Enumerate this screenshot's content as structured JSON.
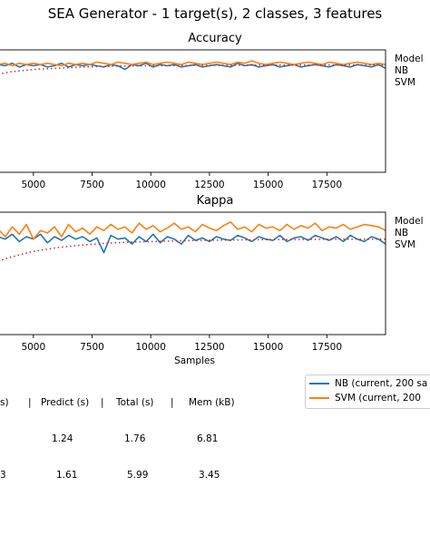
{
  "title": "SEA Generator - 1 target(s), 2 classes, 3 features",
  "colors": {
    "nb": "#1f77b4",
    "svm": "#ff7f0e",
    "dotted": "#d62728"
  },
  "legend_side": {
    "header": "Model",
    "items": [
      "NB",
      "SVM"
    ]
  },
  "legend_bottom": {
    "items": [
      {
        "label": "NB  (current, 200 sa",
        "color": "#1f77b4"
      },
      {
        "label": "SVM  (current, 200",
        "color": "#ff7f0e"
      }
    ]
  },
  "stats": {
    "header": [
      "s)",
      "|",
      "Predict (s)",
      "|",
      "Total (s)",
      "|",
      "Mem (kB)"
    ],
    "rows": [
      [
        "",
        "1.24",
        "1.76",
        "6.81"
      ],
      [
        "3",
        "1.61",
        "5.99",
        "3.45"
      ]
    ]
  },
  "chart_data": [
    {
      "type": "line",
      "title": "Accuracy",
      "xlabel": "",
      "ylabel": "",
      "xticks": [
        5000,
        7500,
        10000,
        12500,
        15000,
        17500
      ],
      "xlim": [
        3500,
        20000
      ],
      "ylim": [
        0,
        1
      ],
      "grid": false,
      "legend_placement": "right",
      "series": [
        {
          "name": "NB",
          "style": "solid",
          "x": [
            3500,
            3800,
            4100,
            4400,
            4700,
            5000,
            5300,
            5600,
            5900,
            6200,
            6500,
            6800,
            7100,
            7400,
            7700,
            8000,
            8300,
            8600,
            8900,
            9200,
            9500,
            9800,
            10100,
            10400,
            10700,
            11000,
            11300,
            11600,
            11900,
            12200,
            12500,
            12800,
            13100,
            13400,
            13700,
            14000,
            14300,
            14600,
            14900,
            15200,
            15500,
            15800,
            16100,
            16400,
            16700,
            17000,
            17300,
            17600,
            17900,
            18200,
            18500,
            18800,
            19100,
            19400,
            19700,
            20000
          ],
          "y": [
            0.88,
            0.87,
            0.89,
            0.86,
            0.88,
            0.87,
            0.88,
            0.86,
            0.87,
            0.89,
            0.86,
            0.88,
            0.87,
            0.88,
            0.87,
            0.86,
            0.88,
            0.87,
            0.84,
            0.88,
            0.87,
            0.89,
            0.86,
            0.88,
            0.87,
            0.88,
            0.86,
            0.87,
            0.88,
            0.86,
            0.87,
            0.88,
            0.87,
            0.86,
            0.89,
            0.87,
            0.88,
            0.86,
            0.87,
            0.88,
            0.86,
            0.87,
            0.88,
            0.86,
            0.87,
            0.88,
            0.87,
            0.86,
            0.88,
            0.87,
            0.86,
            0.88,
            0.87,
            0.86,
            0.88,
            0.85
          ]
        },
        {
          "name": "SVM",
          "style": "solid",
          "x": [
            3500,
            3800,
            4100,
            4400,
            4700,
            5000,
            5300,
            5600,
            5900,
            6200,
            6500,
            6800,
            7100,
            7400,
            7700,
            8000,
            8300,
            8600,
            8900,
            9200,
            9500,
            9800,
            10100,
            10400,
            10700,
            11000,
            11300,
            11600,
            11900,
            12200,
            12500,
            12800,
            13100,
            13400,
            13700,
            14000,
            14300,
            14600,
            14900,
            15200,
            15500,
            15800,
            16100,
            16400,
            16700,
            17000,
            17300,
            17600,
            17900,
            18200,
            18500,
            18800,
            19100,
            19400,
            19700,
            20000
          ],
          "y": [
            0.88,
            0.89,
            0.87,
            0.89,
            0.88,
            0.89,
            0.88,
            0.89,
            0.88,
            0.87,
            0.89,
            0.88,
            0.89,
            0.88,
            0.9,
            0.89,
            0.88,
            0.9,
            0.89,
            0.88,
            0.89,
            0.9,
            0.88,
            0.89,
            0.9,
            0.89,
            0.88,
            0.9,
            0.89,
            0.88,
            0.89,
            0.9,
            0.89,
            0.88,
            0.9,
            0.89,
            0.91,
            0.89,
            0.88,
            0.89,
            0.9,
            0.89,
            0.88,
            0.89,
            0.9,
            0.89,
            0.88,
            0.9,
            0.89,
            0.88,
            0.89,
            0.9,
            0.89,
            0.88,
            0.89,
            0.88
          ]
        },
        {
          "name": "",
          "style": "dotted",
          "x": [
            3500,
            4000,
            5000,
            6000,
            7000,
            8000,
            9000,
            10000,
            11000,
            12000,
            13000,
            14000,
            15000,
            16000,
            17000,
            18000,
            19000,
            20000
          ],
          "y": [
            0.8,
            0.82,
            0.84,
            0.85,
            0.86,
            0.865,
            0.868,
            0.87,
            0.872,
            0.873,
            0.874,
            0.875,
            0.876,
            0.876,
            0.877,
            0.877,
            0.877,
            0.877
          ]
        }
      ]
    },
    {
      "type": "line",
      "title": "Kappa",
      "xlabel": "Samples",
      "ylabel": "",
      "xticks": [
        5000,
        7500,
        10000,
        12500,
        15000,
        17500
      ],
      "xlim": [
        3500,
        20000
      ],
      "ylim": [
        0,
        1
      ],
      "grid": false,
      "legend_placement": "right",
      "series": [
        {
          "name": "NB",
          "style": "solid",
          "x": [
            3500,
            3800,
            4100,
            4400,
            4700,
            5000,
            5300,
            5600,
            5900,
            6200,
            6500,
            6800,
            7100,
            7400,
            7700,
            8000,
            8300,
            8600,
            8900,
            9200,
            9500,
            9800,
            10100,
            10400,
            10700,
            11000,
            11300,
            11600,
            11900,
            12200,
            12500,
            12800,
            13100,
            13400,
            13700,
            14000,
            14300,
            14600,
            14900,
            15200,
            15500,
            15800,
            16100,
            16400,
            16700,
            17000,
            17300,
            17600,
            17900,
            18200,
            18500,
            18800,
            19100,
            19400,
            19700,
            20000
          ],
          "y": [
            0.8,
            0.78,
            0.82,
            0.76,
            0.8,
            0.78,
            0.82,
            0.75,
            0.8,
            0.77,
            0.81,
            0.78,
            0.8,
            0.76,
            0.79,
            0.67,
            0.81,
            0.78,
            0.79,
            0.74,
            0.8,
            0.76,
            0.82,
            0.75,
            0.8,
            0.78,
            0.74,
            0.81,
            0.77,
            0.79,
            0.76,
            0.8,
            0.78,
            0.77,
            0.81,
            0.79,
            0.76,
            0.8,
            0.78,
            0.77,
            0.81,
            0.76,
            0.79,
            0.8,
            0.77,
            0.81,
            0.79,
            0.77,
            0.8,
            0.76,
            0.81,
            0.78,
            0.76,
            0.8,
            0.78,
            0.74
          ]
        },
        {
          "name": "SVM",
          "style": "solid",
          "x": [
            3500,
            3800,
            4100,
            4400,
            4700,
            5000,
            5300,
            5600,
            5900,
            6200,
            6500,
            6800,
            7100,
            7400,
            7700,
            8000,
            8300,
            8600,
            8900,
            9200,
            9500,
            9800,
            10100,
            10400,
            10700,
            11000,
            11300,
            11600,
            11900,
            12200,
            12500,
            12800,
            13100,
            13400,
            13700,
            14000,
            14300,
            14600,
            14900,
            15200,
            15500,
            15800,
            16100,
            16400,
            16700,
            17000,
            17300,
            17600,
            17900,
            18200,
            18500,
            18800,
            19100,
            19400,
            19700,
            20000
          ],
          "y": [
            0.86,
            0.8,
            0.88,
            0.82,
            0.9,
            0.78,
            0.85,
            0.83,
            0.88,
            0.8,
            0.9,
            0.84,
            0.87,
            0.82,
            0.88,
            0.85,
            0.9,
            0.86,
            0.88,
            0.83,
            0.91,
            0.86,
            0.89,
            0.84,
            0.87,
            0.91,
            0.86,
            0.88,
            0.84,
            0.9,
            0.87,
            0.85,
            0.89,
            0.92,
            0.86,
            0.88,
            0.84,
            0.9,
            0.87,
            0.88,
            0.85,
            0.9,
            0.86,
            0.89,
            0.87,
            0.91,
            0.85,
            0.88,
            0.87,
            0.9,
            0.86,
            0.88,
            0.9,
            0.89,
            0.88,
            0.85
          ]
        },
        {
          "name": "",
          "style": "dotted",
          "x": [
            3500,
            4000,
            5000,
            6000,
            7000,
            8000,
            9000,
            10000,
            11000,
            12000,
            13000,
            14000,
            15000,
            16000,
            17000,
            18000,
            19000,
            20000
          ],
          "y": [
            0.6,
            0.63,
            0.68,
            0.71,
            0.73,
            0.745,
            0.755,
            0.76,
            0.765,
            0.77,
            0.772,
            0.774,
            0.776,
            0.777,
            0.778,
            0.779,
            0.78,
            0.78
          ]
        }
      ]
    }
  ]
}
